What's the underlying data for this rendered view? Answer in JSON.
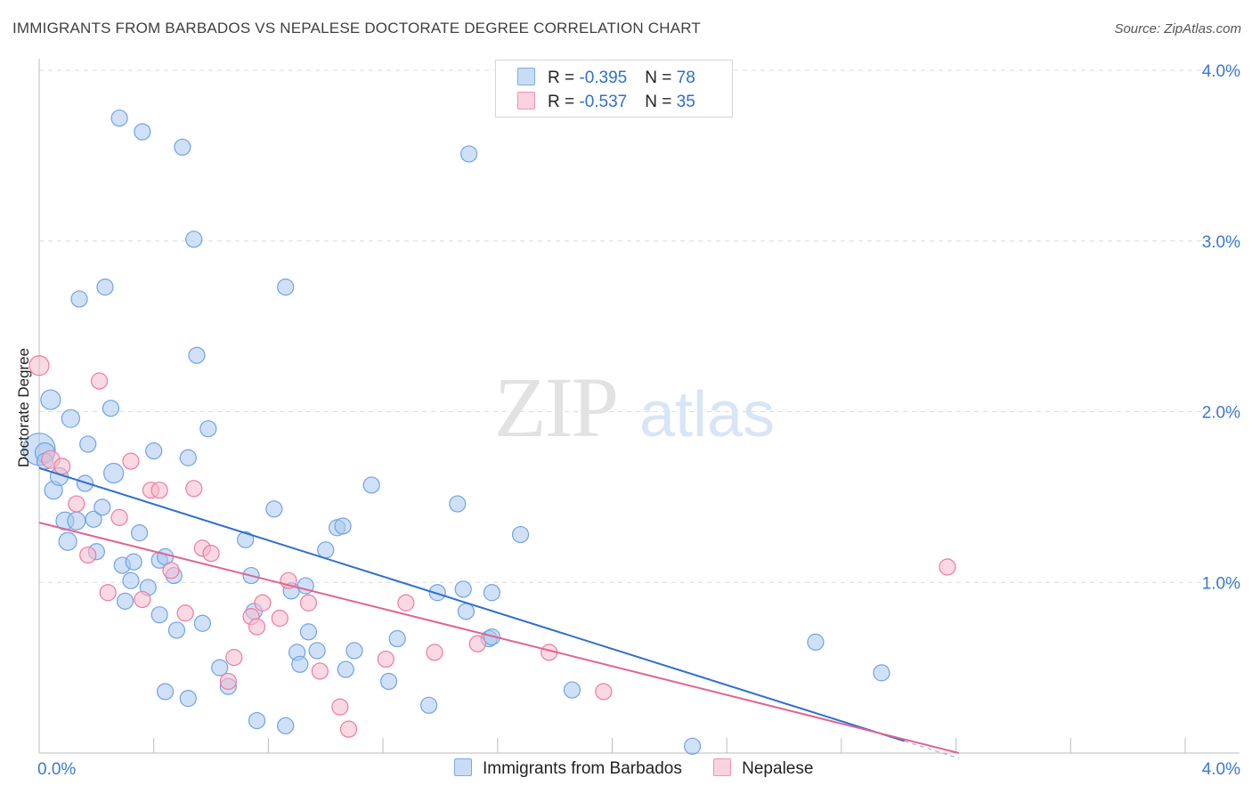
{
  "header": {
    "title": "IMMIGRANTS FROM BARBADOS VS NEPALESE DOCTORATE DEGREE CORRELATION CHART",
    "source": "Source: ZipAtlas.com"
  },
  "watermark": {
    "zip": "ZIP",
    "atlas": "atlas"
  },
  "legend": {
    "rows": [
      {
        "r_label": "R = ",
        "r_value": "-0.395",
        "n_label": "N = ",
        "n_value": "78",
        "color": "#a9c8f0"
      },
      {
        "r_label": "R = ",
        "r_value": "-0.537",
        "n_label": "N = ",
        "n_value": "35",
        "color": "#f7b9cb"
      }
    ]
  },
  "bottom_legend": {
    "items": [
      {
        "label": "Immigrants from Barbados",
        "color": "#a9c8f0"
      },
      {
        "label": "Nepalese",
        "color": "#f7b9cb"
      }
    ]
  },
  "chart_data": {
    "type": "scatter",
    "title": "IMMIGRANTS FROM BARBADOS VS NEPALESE DOCTORATE DEGREE CORRELATION CHART",
    "xlabel": "",
    "ylabel": "Doctorate Degree",
    "xlim": [
      0,
      4.0
    ],
    "ylim": [
      0,
      4.0
    ],
    "x_tick_labels": [
      "0.0%",
      "4.0%"
    ],
    "y_tick_labels": [
      "1.0%",
      "2.0%",
      "3.0%",
      "4.0%"
    ],
    "y_ticks": [
      1.0,
      2.0,
      3.0,
      4.0
    ],
    "grid": true,
    "legend_placement": "top-center",
    "series": [
      {
        "name": "Immigrants from Barbados",
        "color": "#6fa3e6",
        "fill": "#a9c8f0",
        "r": -0.395,
        "n": 78,
        "trend": {
          "x": [
            0.0,
            3.02
          ],
          "y": [
            1.67,
            0.07
          ]
        },
        "points": [
          [
            0.0,
            1.78,
            18
          ],
          [
            0.02,
            1.76,
            11
          ],
          [
            0.04,
            2.07,
            11
          ],
          [
            0.05,
            1.54,
            10
          ],
          [
            0.07,
            1.62,
            10
          ],
          [
            0.09,
            1.36,
            10
          ],
          [
            0.1,
            1.24,
            10
          ],
          [
            0.11,
            1.96,
            10
          ],
          [
            0.13,
            1.36,
            10
          ],
          [
            0.14,
            2.66,
            9
          ],
          [
            0.16,
            1.58,
            9
          ],
          [
            0.17,
            1.81,
            9
          ],
          [
            0.19,
            1.37,
            9
          ],
          [
            0.2,
            1.18,
            9
          ],
          [
            0.22,
            1.44,
            9
          ],
          [
            0.23,
            2.73,
            9
          ],
          [
            0.25,
            2.02,
            9
          ],
          [
            0.26,
            1.64,
            11
          ],
          [
            0.28,
            3.72,
            9
          ],
          [
            0.29,
            1.1,
            9
          ],
          [
            0.3,
            0.89,
            9
          ],
          [
            0.32,
            1.01,
            9
          ],
          [
            0.33,
            1.12,
            9
          ],
          [
            0.35,
            1.29,
            9
          ],
          [
            0.36,
            3.64,
            9
          ],
          [
            0.38,
            0.97,
            9
          ],
          [
            0.4,
            1.77,
            9
          ],
          [
            0.42,
            1.13,
            9
          ],
          [
            0.42,
            0.81,
            9
          ],
          [
            0.44,
            0.36,
            9
          ],
          [
            0.44,
            1.15,
            9
          ],
          [
            0.47,
            1.04,
            9
          ],
          [
            0.48,
            0.72,
            9
          ],
          [
            0.5,
            3.55,
            9
          ],
          [
            0.52,
            1.73,
            9
          ],
          [
            0.52,
            0.32,
            9
          ],
          [
            0.54,
            3.01,
            9
          ],
          [
            0.55,
            2.33,
            9
          ],
          [
            0.57,
            0.76,
            9
          ],
          [
            0.59,
            1.9,
            9
          ],
          [
            0.63,
            0.5,
            9
          ],
          [
            0.66,
            0.39,
            9
          ],
          [
            0.72,
            1.25,
            9
          ],
          [
            0.74,
            1.04,
            9
          ],
          [
            0.75,
            0.83,
            9
          ],
          [
            0.76,
            0.19,
            9
          ],
          [
            0.82,
            1.43,
            9
          ],
          [
            0.86,
            0.16,
            9
          ],
          [
            0.86,
            2.73,
            9
          ],
          [
            0.88,
            0.95,
            9
          ],
          [
            0.9,
            0.59,
            9
          ],
          [
            0.91,
            0.52,
            9
          ],
          [
            0.93,
            0.98,
            9
          ],
          [
            0.94,
            0.71,
            9
          ],
          [
            0.97,
            0.6,
            9
          ],
          [
            1.0,
            1.19,
            9
          ],
          [
            1.04,
            1.32,
            9
          ],
          [
            1.06,
            1.33,
            9
          ],
          [
            1.07,
            0.49,
            9
          ],
          [
            1.1,
            0.6,
            9
          ],
          [
            1.16,
            1.57,
            9
          ],
          [
            1.22,
            0.42,
            9
          ],
          [
            1.25,
            0.67,
            9
          ],
          [
            1.36,
            0.28,
            9
          ],
          [
            1.39,
            0.94,
            9
          ],
          [
            1.46,
            1.46,
            9
          ],
          [
            1.48,
            0.96,
            9
          ],
          [
            1.49,
            0.83,
            9
          ],
          [
            1.5,
            3.51,
            9
          ],
          [
            1.57,
            0.67,
            9
          ],
          [
            1.58,
            0.68,
            9
          ],
          [
            1.58,
            0.94,
            9
          ],
          [
            1.68,
            1.28,
            9
          ],
          [
            1.86,
            0.37,
            9
          ],
          [
            2.28,
            0.04,
            9
          ],
          [
            2.71,
            0.65,
            9
          ],
          [
            2.94,
            0.47,
            9
          ],
          [
            0.02,
            1.71,
            9
          ]
        ]
      },
      {
        "name": "Nepalese",
        "color": "#ee7aa0",
        "fill": "#f7b9cb",
        "r": -0.537,
        "n": 35,
        "trend": {
          "x": [
            0.0,
            3.21
          ],
          "y": [
            1.35,
            0.0
          ]
        },
        "points": [
          [
            0.0,
            2.27,
            11
          ],
          [
            0.04,
            1.72,
            10
          ],
          [
            0.08,
            1.68,
            9
          ],
          [
            0.13,
            1.46,
            9
          ],
          [
            0.17,
            1.16,
            9
          ],
          [
            0.21,
            2.18,
            9
          ],
          [
            0.24,
            0.94,
            9
          ],
          [
            0.28,
            1.38,
            9
          ],
          [
            0.32,
            1.71,
            9
          ],
          [
            0.36,
            0.9,
            9
          ],
          [
            0.39,
            1.54,
            9
          ],
          [
            0.42,
            1.54,
            9
          ],
          [
            0.46,
            1.07,
            9
          ],
          [
            0.51,
            0.82,
            9
          ],
          [
            0.54,
            1.55,
            9
          ],
          [
            0.57,
            1.2,
            9
          ],
          [
            0.6,
            1.17,
            9
          ],
          [
            0.66,
            0.42,
            9
          ],
          [
            0.68,
            0.56,
            9
          ],
          [
            0.74,
            0.8,
            9
          ],
          [
            0.76,
            0.74,
            9
          ],
          [
            0.78,
            0.88,
            9
          ],
          [
            0.84,
            0.79,
            9
          ],
          [
            0.87,
            1.01,
            9
          ],
          [
            0.94,
            0.88,
            9
          ],
          [
            0.98,
            0.48,
            9
          ],
          [
            1.05,
            0.27,
            9
          ],
          [
            1.08,
            0.14,
            9
          ],
          [
            1.21,
            0.55,
            9
          ],
          [
            1.28,
            0.88,
            9
          ],
          [
            1.38,
            0.59,
            9
          ],
          [
            1.53,
            0.64,
            9
          ],
          [
            1.78,
            0.59,
            9
          ],
          [
            1.97,
            0.36,
            9
          ],
          [
            3.17,
            1.09,
            9
          ]
        ]
      }
    ]
  }
}
